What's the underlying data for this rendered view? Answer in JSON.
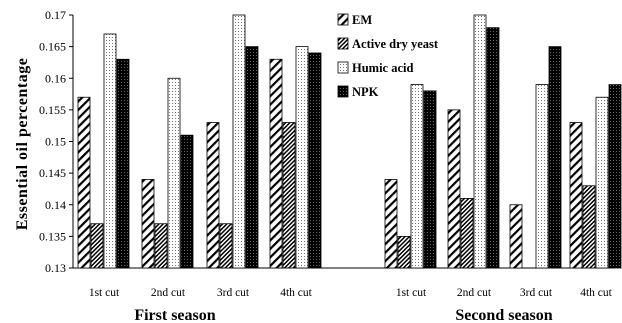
{
  "chart_data": {
    "type": "bar",
    "ylabel": "Essential oil percentage",
    "ylim": [
      0.13,
      0.17
    ],
    "yticks": [
      0.13,
      0.135,
      0.14,
      0.145,
      0.15,
      0.155,
      0.16,
      0.165,
      0.17
    ],
    "ytick_labels": [
      "0.13",
      "0.135",
      "0.14",
      "0.145",
      "0.15",
      "0.155",
      "0.16",
      "0.165",
      "0.17"
    ],
    "grid": false,
    "legend_position": "top-center",
    "groups": [
      {
        "label": "First season",
        "categories": [
          "1st cut",
          "2nd cut",
          "3rd cut",
          "4th cut"
        ]
      },
      {
        "label": "Second season",
        "categories": [
          "1st cut",
          "2nd cut",
          "3rd cut",
          "4th cut"
        ]
      }
    ],
    "series": [
      {
        "name": "EM",
        "pattern": "diagonal-wide",
        "color": "#000000",
        "values": [
          0.157,
          0.144,
          0.153,
          0.163,
          0.144,
          0.155,
          0.14,
          0.153
        ]
      },
      {
        "name": "Active dry yeast",
        "pattern": "diagonal-dense",
        "color": "#000000",
        "values": [
          0.137,
          0.137,
          0.137,
          0.153,
          0.135,
          0.141,
          null,
          0.143
        ]
      },
      {
        "name": "Humic acid",
        "pattern": "light-dotted",
        "color": "#000000",
        "values": [
          0.167,
          0.16,
          0.17,
          0.165,
          0.159,
          0.17,
          0.159,
          0.157
        ]
      },
      {
        "name": "NPK",
        "pattern": "dark-dotted",
        "color": "#000000",
        "values": [
          0.163,
          0.151,
          0.165,
          0.164,
          0.158,
          0.168,
          0.165,
          0.159
        ]
      }
    ]
  }
}
